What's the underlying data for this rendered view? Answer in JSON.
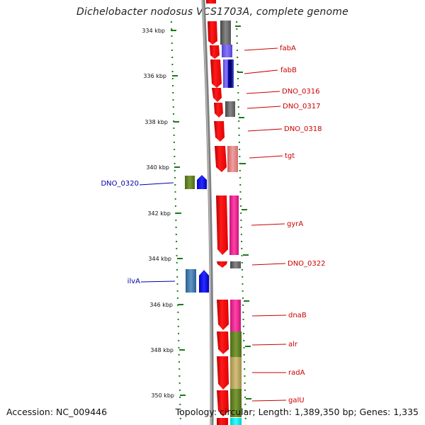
{
  "title": "Dichelobacter nodosus VCS1703A, complete genome",
  "accession": "Accession: NC_009446",
  "topology": "Topology: circular; Length: 1,389,350 bp; Genes: 1,335",
  "colors": {
    "backbone": "#808080",
    "forward_strand": "#ff0000",
    "label_forward": "#cc0000",
    "label_reverse": "#0000aa",
    "tick": "#1a7a1a"
  },
  "ticks": [
    "334 kbp",
    "336 kbp",
    "338 kbp",
    "340 kbp",
    "342 kbp",
    "344 kbp",
    "346 kbp",
    "348 kbp",
    "350 kbp"
  ],
  "forward_labels": [
    "fabA",
    "fabB",
    "DNO_0316",
    "DNO_0317",
    "DNO_0318",
    "tgt",
    "gyrA",
    "DNO_0322",
    "dnaB",
    "alr",
    "radA",
    "galU"
  ],
  "reverse_labels": [
    "DNO_0320",
    "ilvA"
  ]
}
